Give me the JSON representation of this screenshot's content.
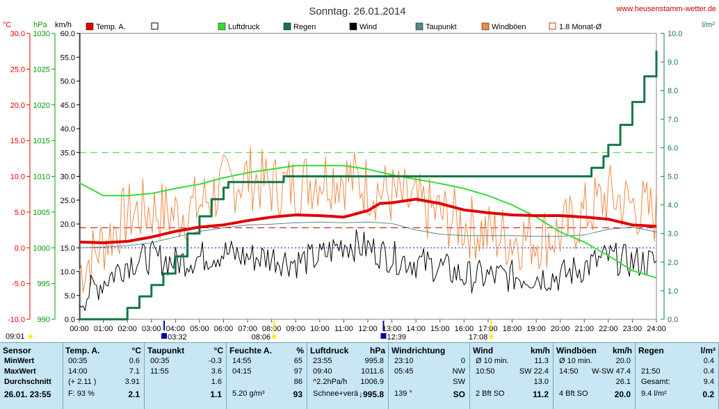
{
  "header": {
    "title": "Sonntag. 26.01.2014",
    "website": "www.heusenstamm-wetter.de"
  },
  "legend": [
    {
      "label": "Temp. A.",
      "color": "#e00000",
      "style": "filled"
    },
    {
      "label": "",
      "color": "#000000",
      "style": "box"
    },
    {
      "label": "Luftdruck",
      "color": "#33dd33",
      "style": "filled"
    },
    {
      "label": "Regen",
      "color": "#117744",
      "style": "filled"
    },
    {
      "label": "Wind",
      "color": "#000000",
      "style": "filled"
    },
    {
      "label": "Taupunkt",
      "color": "#558888",
      "style": "filled"
    },
    {
      "label": "Windböen",
      "color": "#ee8844",
      "style": "filled"
    },
    {
      "label": "1.8 Monat-Ø",
      "color": "#cc3300",
      "style": "box"
    }
  ],
  "axis_units": {
    "temp": "°C",
    "pressure": "hPa",
    "wind": "km/h",
    "rain": "l/m²"
  },
  "markers": {
    "left": "09:01",
    "right": "17:08",
    "items": [
      {
        "time": "03:32",
        "hour": 3.53,
        "kind": "moon"
      },
      {
        "time": "08:06",
        "hour": 8.1,
        "kind": "sun"
      },
      {
        "time": "12:39",
        "hour": 12.65,
        "kind": "moon"
      },
      {
        "time": "17:08",
        "hour": 17.13,
        "kind": "sun"
      }
    ]
  },
  "chart_data": {
    "type": "line",
    "x_unit": "hours",
    "x_range": [
      0,
      24
    ],
    "x_ticks": [
      "00:00",
      "01:00",
      "02:00",
      "03:00",
      "04:00",
      "05:00",
      "06:00",
      "07:00",
      "08:00",
      "09:00",
      "10:00",
      "11:00",
      "12:00",
      "13:00",
      "14:00",
      "15:00",
      "16:00",
      "17:00",
      "18:00",
      "19:00",
      "20:00",
      "21:00",
      "22:00",
      "23:00",
      "24:00"
    ],
    "axes": {
      "temp": {
        "range": [
          -10,
          30
        ],
        "ticks": [
          "-10.0",
          "-5.0",
          "0.0",
          "5.0",
          "10.0",
          "15.0",
          "20.0",
          "25.0",
          "30.0"
        ],
        "color": "#e00000"
      },
      "pressure": {
        "range": [
          990,
          1030
        ],
        "ticks": [
          "990",
          "995",
          "1000",
          "1005",
          "1010",
          "1015",
          "1020",
          "1025",
          "1030"
        ],
        "color": "#009900"
      },
      "wind": {
        "range": [
          0,
          60
        ],
        "ticks": [
          "0.0",
          "5.0",
          "10.0",
          "15.0",
          "20.0",
          "25.0",
          "30.0",
          "35.0",
          "40.0",
          "45.0",
          "50.0",
          "55.0",
          "60.0"
        ],
        "color": "#000000"
      },
      "rain": {
        "range": [
          0,
          10
        ],
        "ticks": [
          "0.0",
          "1.0",
          "2.0",
          "3.0",
          "4.0",
          "5.0",
          "6.0",
          "7.0",
          "8.0",
          "9.0",
          "10.0"
        ],
        "color": "#117744"
      }
    },
    "reference_lines": [
      {
        "axis": "temp",
        "value": 2.8,
        "color": "#cc0000",
        "dash": "10,6",
        "name": "1.8 Monat-Ø"
      },
      {
        "axis": "wind",
        "value": 35,
        "color": "#33cc33",
        "dash": "10,6"
      },
      {
        "axis": "temp",
        "value": 0,
        "color": "#0000cc",
        "dash": "2,3"
      }
    ],
    "series": [
      {
        "name": "Temp. A.",
        "axis": "temp",
        "color": "#e00000",
        "width": 4,
        "x": [
          0,
          1,
          2,
          3,
          4,
          5,
          6,
          7,
          8,
          9,
          10,
          11,
          12,
          12.5,
          13,
          14,
          15,
          16,
          17,
          18,
          19,
          20,
          21,
          22,
          23,
          24
        ],
        "y": [
          0.8,
          0.7,
          0.9,
          1.5,
          2.3,
          2.9,
          3.2,
          3.8,
          4.3,
          4.6,
          4.5,
          4.3,
          5.2,
          6.2,
          6.3,
          6.8,
          6.2,
          5.3,
          4.9,
          4.6,
          4.5,
          4.5,
          4.3,
          4.0,
          3.2,
          3.0
        ]
      },
      {
        "name": "Taupunkt",
        "axis": "temp",
        "color": "#558888",
        "width": 1,
        "x": [
          0,
          1,
          2,
          3,
          4,
          5,
          6,
          7,
          8,
          9,
          10,
          11,
          12,
          13,
          14,
          15,
          16,
          17,
          18,
          19,
          20,
          21,
          22,
          23,
          24
        ],
        "y": [
          0.0,
          0.1,
          0.3,
          0.7,
          1.5,
          2.3,
          2.8,
          3.2,
          3.3,
          3.5,
          3.6,
          3.5,
          3.6,
          3.4,
          2.5,
          1.9,
          1.7,
          1.7,
          1.7,
          1.6,
          1.6,
          1.8,
          2.6,
          2.9,
          2.2
        ]
      },
      {
        "name": "Luftdruck",
        "axis": "pressure",
        "color": "#33dd33",
        "width": 2,
        "x": [
          0,
          1,
          2,
          3,
          4,
          5,
          6,
          7,
          8,
          9,
          10,
          11,
          12,
          13,
          14,
          15,
          16,
          17,
          18,
          19,
          20,
          21,
          22,
          23,
          24
        ],
        "y": [
          1009.1,
          1007.3,
          1007.3,
          1007.6,
          1008.3,
          1008.9,
          1009.8,
          1010.5,
          1011.0,
          1011.5,
          1011.5,
          1011.5,
          1011.0,
          1010.2,
          1009.6,
          1009.0,
          1008.3,
          1007.3,
          1006.0,
          1004.3,
          1002.2,
          1000.8,
          998.9,
          996.8,
          995.8
        ]
      },
      {
        "name": "Regen",
        "axis": "rain",
        "color": "#117744",
        "width": 3,
        "step": true,
        "x": [
          0,
          1.8,
          2,
          2.5,
          3,
          3.5,
          4,
          4.5,
          5,
          5.5,
          6,
          6.2,
          7,
          8,
          8.5,
          9,
          21,
          21.3,
          21.8,
          22,
          22.5,
          23,
          23.5,
          24
        ],
        "y": [
          0,
          0,
          0.4,
          0.8,
          1.2,
          1.6,
          2.2,
          3.0,
          3.6,
          4.2,
          4.6,
          4.8,
          4.8,
          4.8,
          5.0,
          5.0,
          5.0,
          5.3,
          5.7,
          6.1,
          6.8,
          7.6,
          8.5,
          9.4
        ]
      },
      {
        "name": "Wind",
        "axis": "wind",
        "color": "#000000",
        "width": 1,
        "noisy": true,
        "x": [
          0,
          1,
          2,
          3,
          4,
          5,
          6,
          7,
          8,
          9,
          10,
          11,
          12,
          13,
          14,
          15,
          16,
          17,
          18,
          19,
          20,
          21,
          22,
          23,
          24
        ],
        "y": [
          4,
          8,
          12,
          13,
          12,
          13,
          14,
          13,
          13,
          12,
          13,
          16,
          15,
          13,
          12,
          11,
          9,
          9,
          9,
          9,
          9,
          11,
          13,
          12,
          12
        ]
      },
      {
        "name": "Windböen",
        "axis": "wind",
        "color": "#ee8844",
        "width": 1,
        "noisy": true,
        "x": [
          0,
          1,
          2,
          3,
          4,
          5,
          6,
          7,
          8,
          9,
          10,
          11,
          12,
          13,
          14,
          15,
          16,
          17,
          18,
          19,
          20,
          21,
          22,
          23,
          24
        ],
        "y": [
          10,
          16,
          22,
          23,
          22,
          24,
          28,
          30,
          28,
          28,
          30,
          30,
          28,
          26,
          24,
          22,
          20,
          18,
          17,
          17,
          18,
          22,
          26,
          24,
          22
        ]
      }
    ]
  },
  "stats": {
    "sensor": {
      "title": "Sensor",
      "rows": [
        "MinWert",
        "MaxWert",
        "Durchschnitt",
        "26.01. 23:55"
      ]
    },
    "columns": [
      {
        "title": "Temp. A.",
        "unit": "°C",
        "rows": [
          [
            "00:35",
            "0.6"
          ],
          [
            "14:00",
            "7.1"
          ],
          [
            "(+ 2.11 )",
            "3.91"
          ],
          [
            "F: 93 %",
            "2.1"
          ]
        ]
      },
      {
        "title": "Taupunkt",
        "unit": "°C",
        "rows": [
          [
            "00:35",
            "-0.3"
          ],
          [
            "11:55",
            "3.6"
          ],
          [
            "",
            "1.6"
          ],
          [
            "",
            "1.1"
          ]
        ]
      },
      {
        "title": "Feuchte A.",
        "unit": "%",
        "rows": [
          [
            "14:55",
            "65"
          ],
          [
            "04:15",
            "97"
          ],
          [
            "",
            "86"
          ],
          [
            "5.20 g/m³",
            "93"
          ]
        ]
      },
      {
        "title": "Luftdruck",
        "unit": "hPa",
        "rows": [
          [
            "23:55",
            "995.8"
          ],
          [
            "09:40",
            "1011.6"
          ],
          [
            "^2.2hPa/h",
            "1006.9"
          ],
          [
            "Schnee+verä",
            "↓995.8"
          ]
        ]
      },
      {
        "title": "Windrichtung",
        "unit": "",
        "rows": [
          [
            "23:10",
            "0"
          ],
          [
            "05:45",
            "NW"
          ],
          [
            "",
            "SW"
          ],
          [
            "139 °",
            "SO"
          ]
        ]
      },
      {
        "title": "Wind",
        "unit": "km/h",
        "rows": [
          [
            "Ø 10 min.",
            "11.3"
          ],
          [
            "10:50",
            "SW 22.4"
          ],
          [
            "",
            "13.0"
          ],
          [
            "2 Bft SO",
            "11.2"
          ]
        ]
      },
      {
        "title": "Windböen",
        "unit": "km/h",
        "rows": [
          [
            "Ø 10 min.",
            "20.0"
          ],
          [
            "14:50",
            "W-SW 47.4"
          ],
          [
            "",
            "26.1"
          ],
          [
            "4 Bft SO",
            "20.0"
          ]
        ]
      },
      {
        "title": "Regen",
        "unit": "l/m²",
        "rows": [
          [
            "",
            "0.4"
          ],
          [
            "21:50",
            "0.4"
          ],
          [
            "Gesamt:",
            "9.4"
          ],
          [
            "9.4 l/m²",
            "0.2"
          ]
        ]
      }
    ]
  }
}
